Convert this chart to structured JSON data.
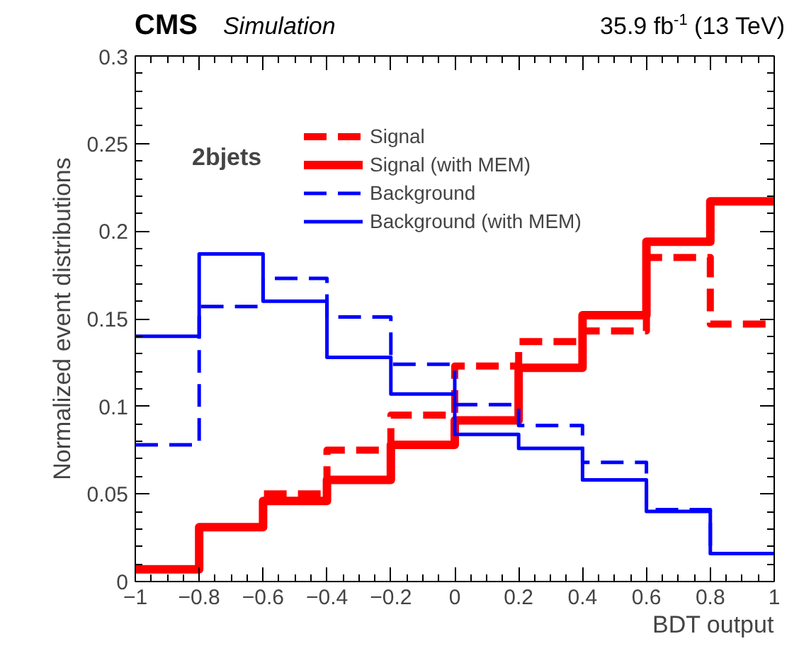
{
  "chart_data": {
    "type": "histogram",
    "title": "CMS",
    "subtitle": "Simulation",
    "annotations": [
      "35.9 fb$^{-1}$ (13 TeV)",
      "2bjets"
    ],
    "xlabel": "BDT output",
    "ylabel": "Normalized event distributions",
    "bins": [
      -1,
      -0.8,
      -0.6,
      -0.4,
      -0.2,
      0,
      0.2,
      0.4,
      0.6,
      0.8,
      1
    ],
    "series": [
      {
        "name": "Signal",
        "color": "#ff0000",
        "line_style": "dashed",
        "values": [
          0.007,
          0.031,
          0.05,
          0.075,
          0.095,
          0.123,
          0.137,
          0.143,
          0.185,
          0.147
        ]
      },
      {
        "name": "Signal (with MEM)",
        "color": "#fe0000",
        "line_style": "solid",
        "values": [
          0.007,
          0.031,
          0.046,
          0.058,
          0.078,
          0.092,
          0.122,
          0.152,
          0.194,
          0.217
        ]
      },
      {
        "name": "Background",
        "color": "#0000ff",
        "line_style": "dashed",
        "values": [
          0.078,
          0.157,
          0.173,
          0.151,
          0.124,
          0.101,
          0.089,
          0.068,
          0.041,
          0.016
        ]
      },
      {
        "name": "Background (with MEM)",
        "color": "#0000fe",
        "line_style": "solid",
        "values": [
          0.14,
          0.187,
          0.16,
          0.128,
          0.107,
          0.084,
          0.076,
          0.058,
          0.04,
          0.016
        ]
      }
    ],
    "xlim": [
      -1,
      1
    ],
    "ylim": [
      0,
      0.3
    ],
    "xticks": [
      -1,
      -0.8,
      -0.6,
      -0.4,
      -0.2,
      0,
      0.2,
      0.4,
      0.6,
      0.8,
      1
    ],
    "yticks": [
      0,
      0.05,
      0.1,
      0.15,
      0.2,
      0.25,
      0.3
    ],
    "legend": "top",
    "grid": false
  }
}
